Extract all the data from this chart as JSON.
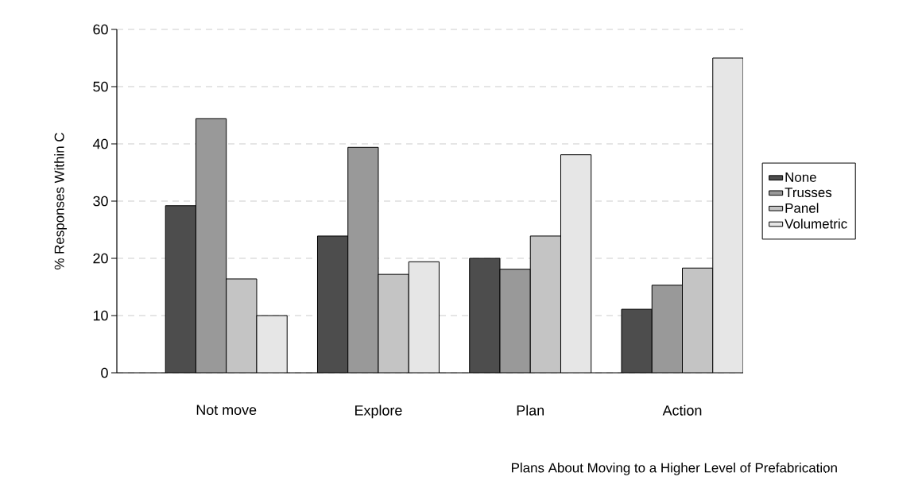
{
  "chart_data": {
    "type": "bar",
    "xlabel": "Plans About Moving to a Higher Level of Prefabrication",
    "ylabel": "% Responses Within C",
    "categories": [
      "Not move",
      "Explore",
      "Plan",
      "Action"
    ],
    "series": [
      {
        "name": "None",
        "color": "#4d4d4d",
        "values": [
          29.2,
          23.9,
          20.0,
          11.1
        ]
      },
      {
        "name": "Trusses",
        "color": "#999999",
        "values": [
          44.4,
          39.4,
          18.1,
          15.3
        ]
      },
      {
        "name": "Panel",
        "color": "#c4c4c4",
        "values": [
          16.4,
          17.2,
          23.9,
          18.3
        ]
      },
      {
        "name": "Volumetric",
        "color": "#e6e6e6",
        "values": [
          10.0,
          19.4,
          38.1,
          55.0
        ]
      }
    ],
    "ylim": [
      0,
      60
    ],
    "yticks": [
      0,
      10,
      20,
      30,
      40,
      50,
      60
    ],
    "grid": "y",
    "legend": "right"
  }
}
